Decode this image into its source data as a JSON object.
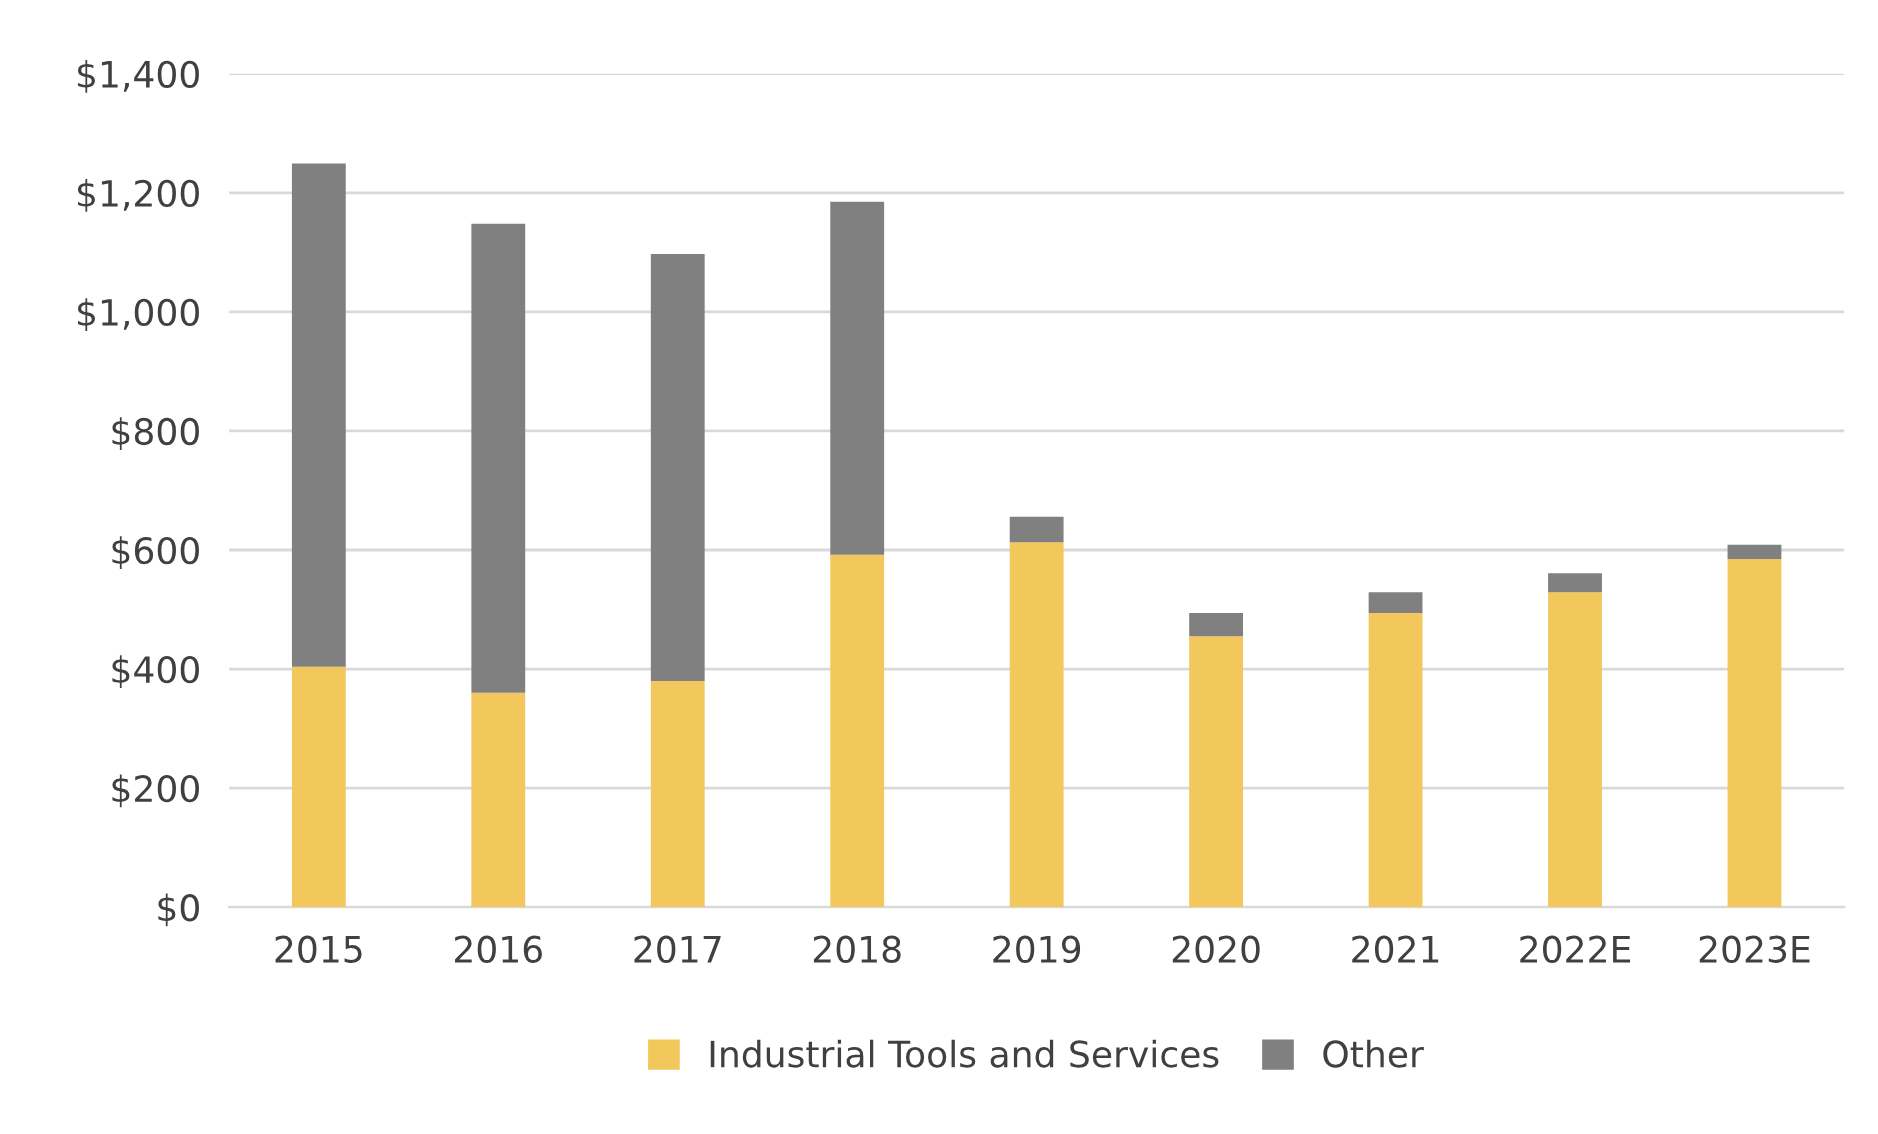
{
  "chart_data": {
    "type": "bar",
    "stacked": true,
    "categories": [
      "2015",
      "2016",
      "2017",
      "2018",
      "2019",
      "2020",
      "2021",
      "2022E",
      "2023E"
    ],
    "series": [
      {
        "name": "Industrial Tools and Services",
        "color": "#f2c75c",
        "values": [
          404,
          360,
          380,
          592,
          613,
          455,
          494,
          529,
          585
        ]
      },
      {
        "name": "Other",
        "color": "#808080",
        "values": [
          845,
          788,
          717,
          593,
          43,
          39,
          35,
          32,
          24
        ]
      }
    ],
    "ylim": [
      0,
      1400
    ],
    "yticks": [
      {
        "value": 0,
        "label": "$0"
      },
      {
        "value": 200,
        "label": "$200"
      },
      {
        "value": 400,
        "label": "$400"
      },
      {
        "value": 600,
        "label": "$600"
      },
      {
        "value": 800,
        "label": "$800"
      },
      {
        "value": 1000,
        "label": "$1,000"
      },
      {
        "value": 1200,
        "label": "$1,200"
      },
      {
        "value": 1400,
        "label": "$1,400"
      }
    ],
    "grid": "y",
    "legend": "bottom"
  }
}
